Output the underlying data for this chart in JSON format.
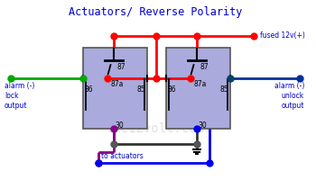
{
  "title": "Actuators/ Reverse Polarity",
  "title_color": "#0000cc",
  "bg_color": "#ffffff",
  "relay_fill": "#aaaadd",
  "relay_stroke": "#555555",
  "watermark": "the12volt.com",
  "watermark_color": "#cccccc",
  "fused_label": "fused 12v(+)",
  "lock_label": "alarm (-)\nlock\noutput",
  "unlock_label": "alarm (-)\nunlock\noutput",
  "actuators_label": "to actuators",
  "r1x": 0.265,
  "r1y": 0.28,
  "r1w": 0.21,
  "r1h": 0.46,
  "r2x": 0.535,
  "r2y": 0.28,
  "r2w": 0.21,
  "r2h": 0.46
}
